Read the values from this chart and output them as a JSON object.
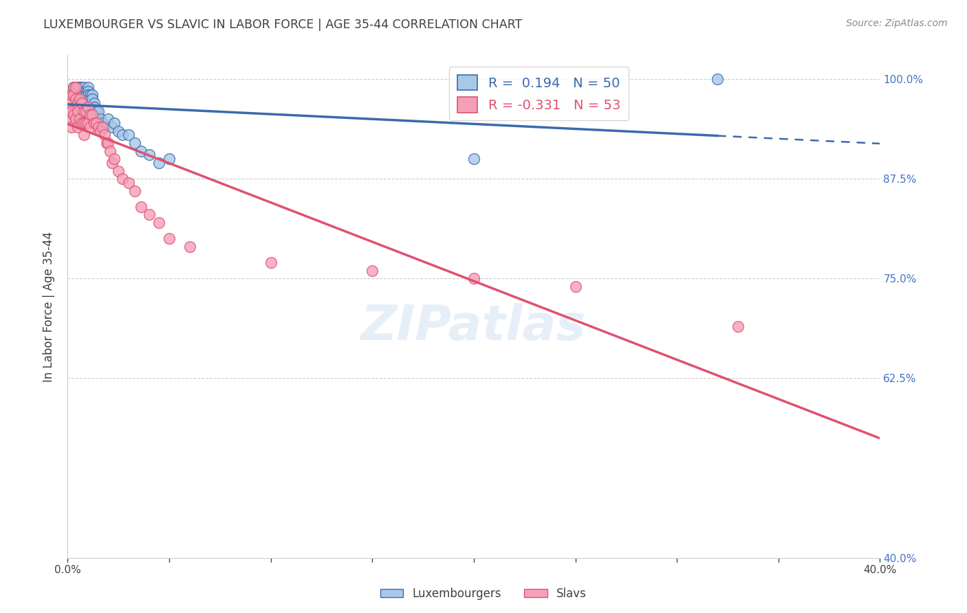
{
  "title": "LUXEMBOURGER VS SLAVIC IN LABOR FORCE | AGE 35-44 CORRELATION CHART",
  "source": "Source: ZipAtlas.com",
  "ylabel": "In Labor Force | Age 35-44",
  "xlim": [
    0.0,
    0.4
  ],
  "ylim": [
    0.4,
    1.03
  ],
  "yticks": [
    0.4,
    0.625,
    0.75,
    0.875,
    1.0
  ],
  "ytick_labels": [
    "40.0%",
    "62.5%",
    "75.0%",
    "87.5%",
    "100.0%"
  ],
  "xticks": [
    0.0,
    0.05,
    0.1,
    0.15,
    0.2,
    0.25,
    0.3,
    0.35,
    0.4
  ],
  "xtick_labels": [
    "0.0%",
    "",
    "",
    "",
    "",
    "",
    "",
    "",
    "40.0%"
  ],
  "r_lux": 0.194,
  "r_slav": -0.331,
  "n_lux": 50,
  "n_slav": 53,
  "color_lux": "#A8C8E8",
  "color_slav": "#F4A0B8",
  "line_color_lux": "#3A6AAC",
  "line_color_slav": "#E05070",
  "background_color": "#FFFFFF",
  "grid_color": "#CCCCCC",
  "title_color": "#404040",
  "tick_color_y": "#4472C4",
  "lux_x": [
    0.001,
    0.002,
    0.002,
    0.003,
    0.003,
    0.003,
    0.004,
    0.004,
    0.005,
    0.005,
    0.005,
    0.005,
    0.006,
    0.006,
    0.006,
    0.007,
    0.007,
    0.007,
    0.007,
    0.008,
    0.008,
    0.009,
    0.009,
    0.01,
    0.01,
    0.01,
    0.011,
    0.011,
    0.012,
    0.012,
    0.013,
    0.013,
    0.014,
    0.015,
    0.016,
    0.017,
    0.018,
    0.02,
    0.022,
    0.023,
    0.025,
    0.027,
    0.03,
    0.033,
    0.036,
    0.04,
    0.045,
    0.05,
    0.2,
    0.32
  ],
  "lux_y": [
    0.96,
    0.98,
    0.97,
    0.99,
    0.99,
    0.98,
    0.99,
    0.99,
    0.99,
    0.99,
    0.99,
    0.985,
    0.99,
    0.99,
    0.99,
    0.99,
    0.99,
    0.985,
    0.98,
    0.99,
    0.985,
    0.985,
    0.98,
    0.99,
    0.985,
    0.98,
    0.98,
    0.975,
    0.98,
    0.975,
    0.97,
    0.965,
    0.96,
    0.96,
    0.95,
    0.945,
    0.94,
    0.95,
    0.94,
    0.945,
    0.935,
    0.93,
    0.93,
    0.92,
    0.91,
    0.905,
    0.895,
    0.9,
    0.9,
    1.0
  ],
  "slav_x": [
    0.001,
    0.001,
    0.002,
    0.002,
    0.002,
    0.003,
    0.003,
    0.003,
    0.004,
    0.004,
    0.004,
    0.005,
    0.005,
    0.005,
    0.006,
    0.006,
    0.007,
    0.007,
    0.008,
    0.008,
    0.008,
    0.009,
    0.009,
    0.01,
    0.01,
    0.011,
    0.011,
    0.012,
    0.013,
    0.014,
    0.015,
    0.016,
    0.017,
    0.018,
    0.019,
    0.02,
    0.021,
    0.022,
    0.023,
    0.025,
    0.027,
    0.03,
    0.033,
    0.036,
    0.04,
    0.045,
    0.05,
    0.06,
    0.1,
    0.15,
    0.2,
    0.25,
    0.33
  ],
  "slav_y": [
    0.97,
    0.95,
    0.98,
    0.96,
    0.94,
    0.99,
    0.98,
    0.955,
    0.99,
    0.975,
    0.95,
    0.97,
    0.96,
    0.94,
    0.975,
    0.95,
    0.97,
    0.945,
    0.96,
    0.945,
    0.93,
    0.96,
    0.945,
    0.965,
    0.945,
    0.955,
    0.94,
    0.955,
    0.945,
    0.945,
    0.94,
    0.935,
    0.94,
    0.93,
    0.92,
    0.92,
    0.91,
    0.895,
    0.9,
    0.885,
    0.875,
    0.87,
    0.86,
    0.84,
    0.83,
    0.82,
    0.8,
    0.79,
    0.77,
    0.76,
    0.75,
    0.74,
    0.69
  ]
}
